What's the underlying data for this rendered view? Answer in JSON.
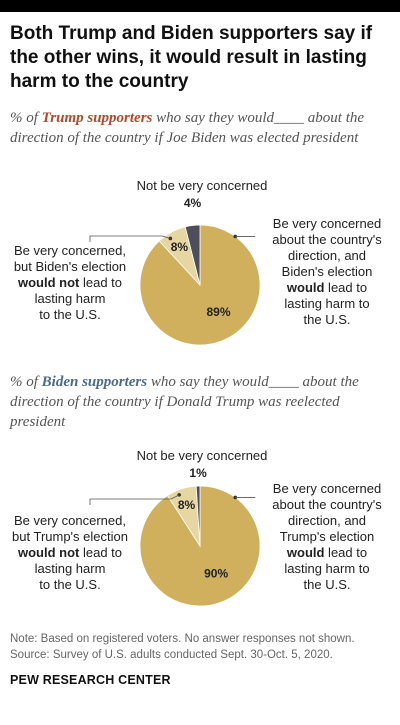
{
  "title": "Both Trump and Biden supporters say if the other wins, it would result in lasting harm to the country",
  "colors": {
    "trump": "#b5482a",
    "biden": "#4c6b8a",
    "lasting_harm": "#d1b05d",
    "no_lasting_harm": "#e5d6a2",
    "not_concerned": "#4e4e5a"
  },
  "chart_data": [
    {
      "type": "pie",
      "subtitle": {
        "prefix": "% of ",
        "group": "Trump supporters",
        "suffix": " who say they would____ about the direction of the country if Joe Biden was elected president"
      },
      "slices": [
        {
          "label": "Be very concerned about the country's direction, and Biden's election would lead to lasting harm to the U.S.",
          "value": 89,
          "display": "89%"
        },
        {
          "label": "Be very concerned, but Biden's election would not lead to lasting harm to the U.S.",
          "value": 8,
          "display": "8%"
        },
        {
          "label": "Not be very concerned",
          "value": 4,
          "display": "4%"
        }
      ],
      "labels": {
        "not_concerned": "Not be very concerned",
        "right": [
          "Be very concerned",
          "about the country's",
          "direction, and",
          "Biden's election",
          "would lead to",
          "lasting harm to",
          "the U.S."
        ],
        "left": [
          "Be very concerned,",
          "but Biden's election",
          "would not lead to",
          "lasting harm",
          "to the U.S."
        ]
      }
    },
    {
      "type": "pie",
      "subtitle": {
        "prefix": "% of ",
        "group": "Biden supporters",
        "suffix": " who say they would____ about the direction of the country if Donald Trump was reelected president"
      },
      "slices": [
        {
          "label": "Be very concerned about the country's direction, and Trump's election would lead to lasting harm to the U.S.",
          "value": 90,
          "display": "90%"
        },
        {
          "label": "Be very concerned, but Trump's election would not lead to lasting harm to the U.S.",
          "value": 8,
          "display": "8%"
        },
        {
          "label": "Not be very concerned",
          "value": 1,
          "display": "1%"
        }
      ],
      "labels": {
        "not_concerned": "Not be very concerned",
        "right": [
          "Be very concerned",
          "about the country's",
          "direction, and",
          "Trump's election",
          "would lead to",
          "lasting harm to",
          "the U.S."
        ],
        "left": [
          "Be very concerned,",
          "but Trump's election",
          "would not lead to",
          "lasting harm",
          "to the U.S."
        ]
      }
    }
  ],
  "notes": {
    "note": "Note: Based on registered voters. No answer responses not shown.",
    "source": "Source: Survey of U.S. adults conducted Sept. 30-Oct. 5, 2020."
  },
  "brand": "PEW RESEARCH CENTER"
}
